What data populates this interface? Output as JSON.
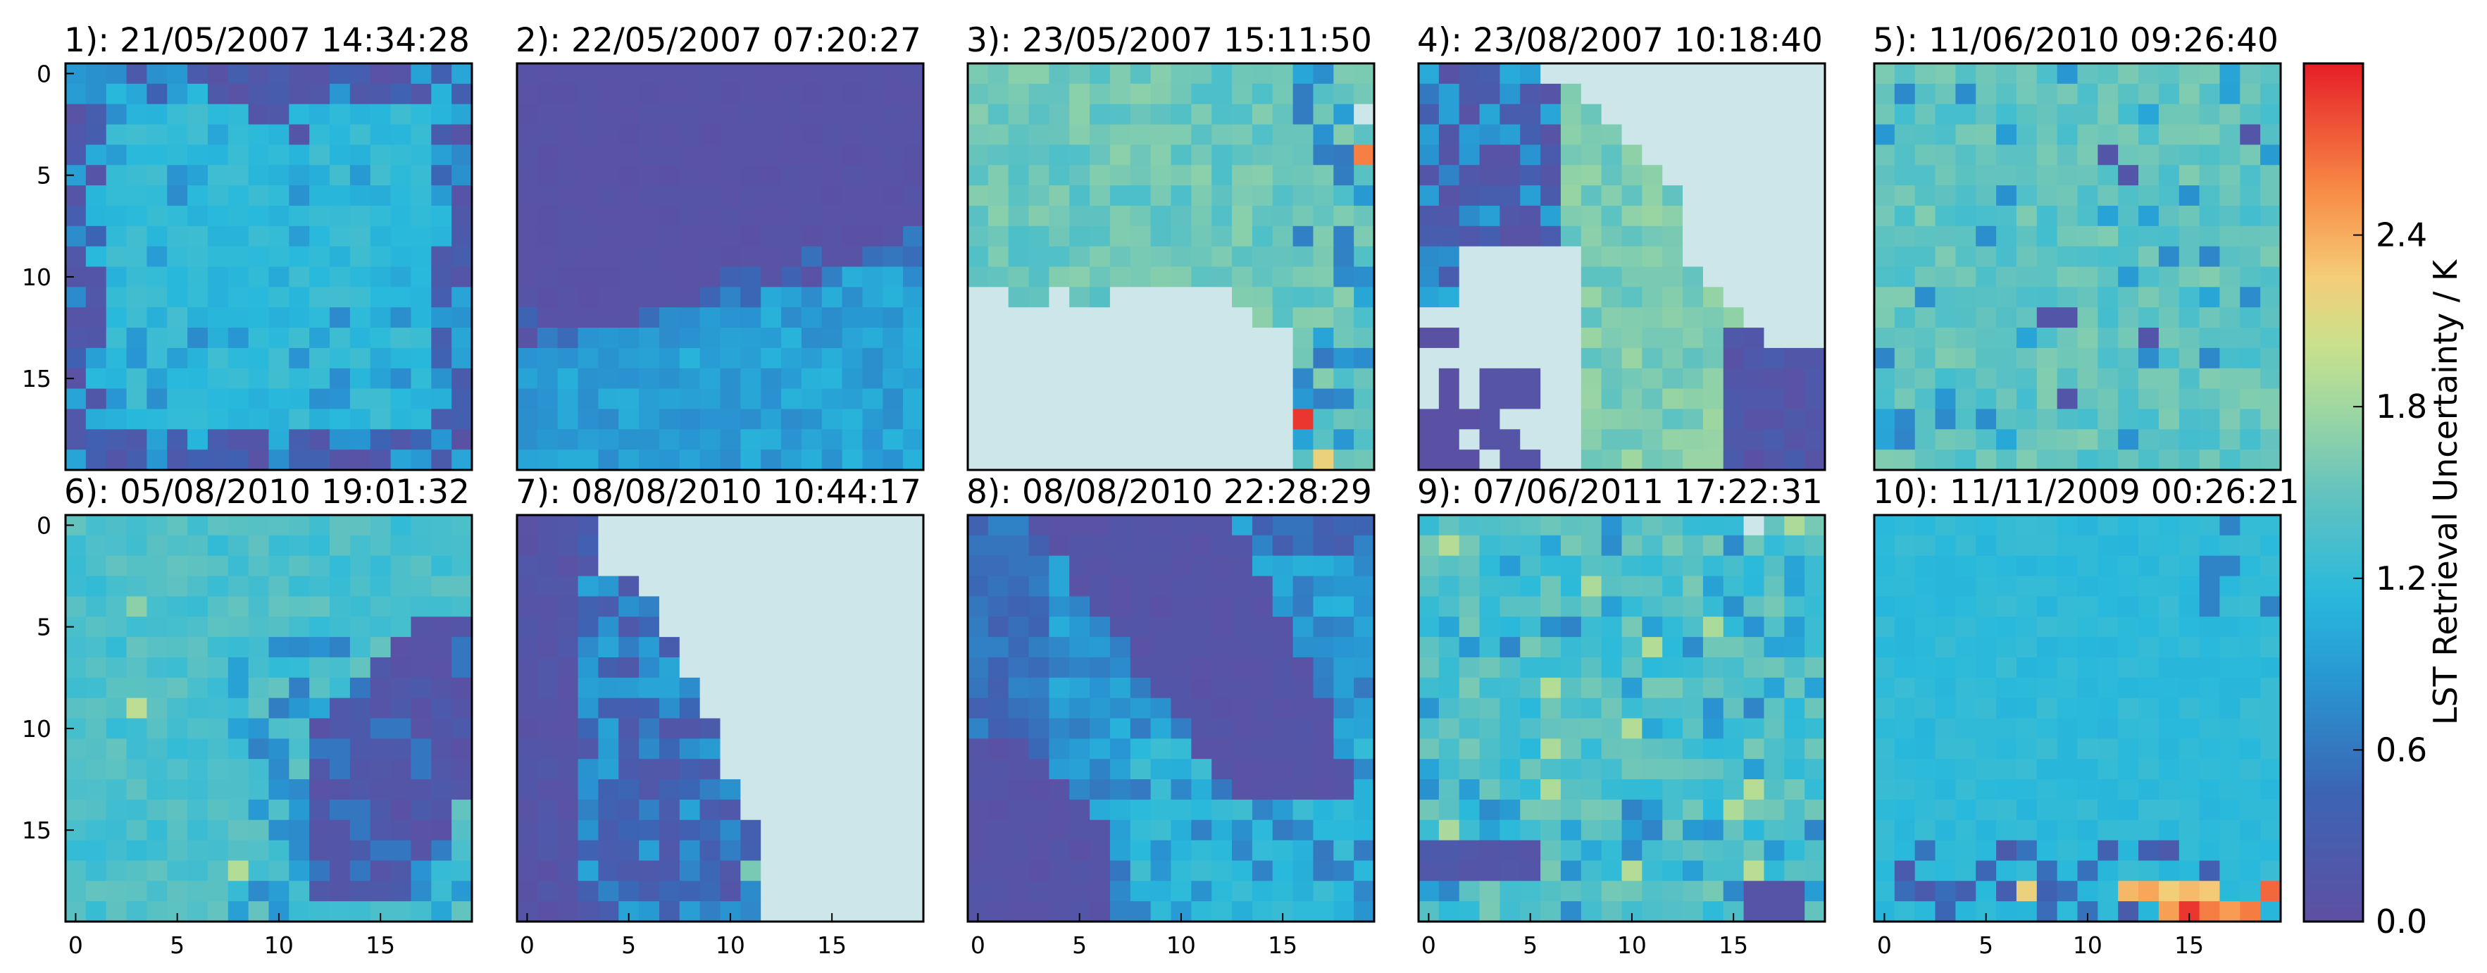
{
  "chart_data": {
    "type": "heatmap",
    "grid_size": [
      20,
      20
    ],
    "x_ticks": [
      0,
      5,
      10,
      15
    ],
    "y_ticks": [
      0,
      5,
      10,
      15
    ],
    "colorbar": {
      "label": "LST Retrieval Uncertainty / K",
      "range": [
        0.0,
        3.0
      ],
      "ticks": [
        "0.0",
        "0.6",
        "1.2",
        "1.8",
        "2.4"
      ],
      "colormap": "spectral"
    },
    "no_data_color": "#cde6e9",
    "panels": [
      {
        "title": "1): 21/05/2007 14:34:28",
        "pattern": "p1"
      },
      {
        "title": "2): 22/05/2007 07:20:27",
        "pattern": "p2"
      },
      {
        "title": "3): 23/05/2007 15:11:50",
        "pattern": "p3"
      },
      {
        "title": "4): 23/08/2007 10:18:40",
        "pattern": "p4"
      },
      {
        "title": "5): 11/06/2010 09:26:40",
        "pattern": "p5"
      },
      {
        "title": "6): 05/08/2010 19:01:32",
        "pattern": "p6"
      },
      {
        "title": "7): 08/08/2010 10:44:17",
        "pattern": "p7"
      },
      {
        "title": "8): 08/08/2010 22:28:29",
        "pattern": "p8"
      },
      {
        "title": "9): 07/06/2011 17:22:31",
        "pattern": "p9"
      },
      {
        "title": "10): 11/11/2009 00:26:21",
        "pattern": "p10"
      }
    ]
  }
}
